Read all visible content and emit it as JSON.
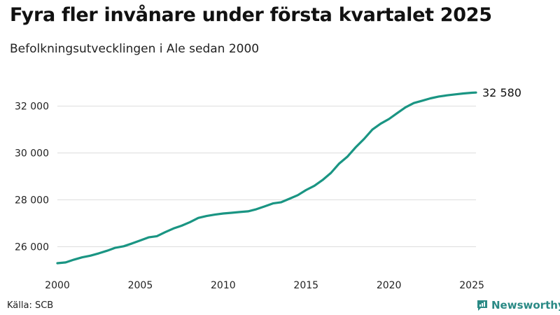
{
  "header": {
    "title": "Fyra fler invånare under första kvartalet 2025",
    "subtitle": "Befolkningsutvecklingen i Ale sedan 2000"
  },
  "footer": {
    "source": "Källa: SCB",
    "brand": "Newsworthy"
  },
  "colors": {
    "line": "#1a9583",
    "grid": "#dddddd",
    "brand": "#2a8a85"
  },
  "icons": {
    "brand": "bar-chart-speech-bubble-icon"
  },
  "chart_data": {
    "type": "line",
    "title": "Fyra fler invånare under första kvartalet 2025",
    "subtitle": "Befolkningsutvecklingen i Ale sedan 2000",
    "xlabel": "",
    "ylabel": "",
    "xlim": [
      2000,
      2025.25
    ],
    "ylim": [
      25000,
      33600
    ],
    "x_ticks": [
      2000,
      2005,
      2010,
      2015,
      2020,
      2025
    ],
    "x_tick_labels": [
      "2000",
      "2005",
      "2010",
      "2015",
      "2020",
      "2025"
    ],
    "y_ticks": [
      26000,
      28000,
      30000,
      32000
    ],
    "y_tick_labels": [
      "26 000",
      "28 000",
      "30 000",
      "32 000"
    ],
    "grid": "horizontal",
    "legend": "none",
    "end_label": "32 580",
    "series": [
      {
        "x": [
          2000.0,
          2000.5,
          2001.0,
          2001.5,
          2002.0,
          2002.5,
          2003.0,
          2003.5,
          2004.0,
          2004.5,
          2005.0,
          2005.5,
          2006.0,
          2006.5,
          2007.0,
          2007.5,
          2008.0,
          2008.5,
          2009.0,
          2009.5,
          2010.0,
          2010.5,
          2011.0,
          2011.5,
          2012.0,
          2012.5,
          2013.0,
          2013.5,
          2014.0,
          2014.5,
          2015.0,
          2015.5,
          2016.0,
          2016.5,
          2017.0,
          2017.5,
          2018.0,
          2018.5,
          2019.0,
          2019.5,
          2020.0,
          2020.5,
          2021.0,
          2021.5,
          2022.0,
          2022.5,
          2023.0,
          2023.5,
          2024.0,
          2024.5,
          2025.0,
          2025.25
        ],
        "y": [
          25300,
          25330,
          25450,
          25550,
          25620,
          25720,
          25830,
          25960,
          26020,
          26140,
          26270,
          26400,
          26450,
          26620,
          26780,
          26900,
          27050,
          27230,
          27310,
          27370,
          27420,
          27450,
          27480,
          27510,
          27600,
          27720,
          27850,
          27900,
          28050,
          28200,
          28420,
          28600,
          28850,
          29150,
          29550,
          29850,
          30250,
          30600,
          31000,
          31250,
          31450,
          31700,
          31950,
          32130,
          32230,
          32330,
          32410,
          32460,
          32500,
          32540,
          32570,
          32580
        ]
      }
    ]
  }
}
